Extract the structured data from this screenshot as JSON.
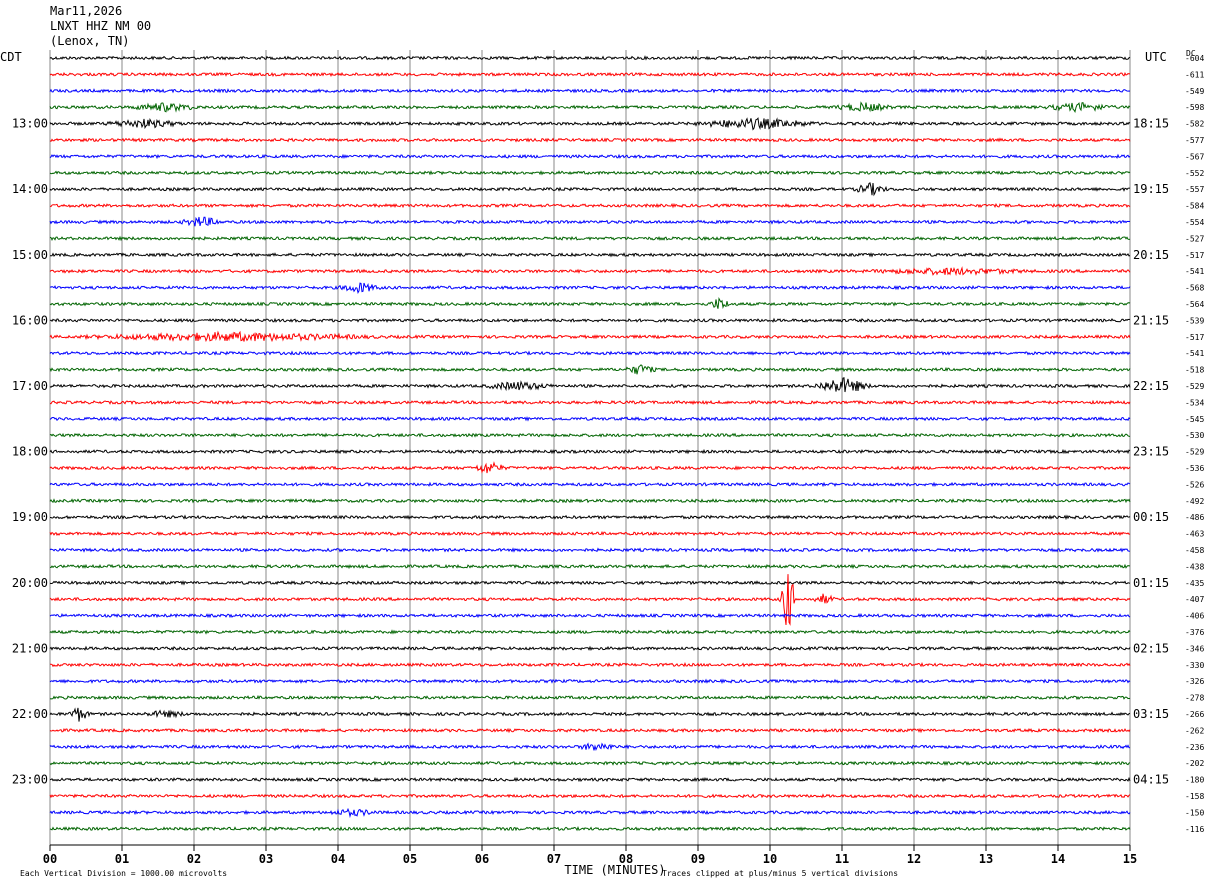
{
  "header": {
    "date": "Mar11,2026",
    "station": "LNXT HHZ NM 00",
    "location": "(Lenox, TN)"
  },
  "left_tz": "CDT",
  "right_tz": "UTC",
  "dc_label": "DC",
  "footer": {
    "scale_note": "Each Vertical Division = 1000.00 microvolts",
    "clip_note": "Traces clipped at plus/minus 5 vertical divisions"
  },
  "colors": {
    "trace_cycle": [
      "#000000",
      "#ff0000",
      "#0000ff",
      "#006400"
    ],
    "grid": "#888888",
    "text": "#000000"
  },
  "chart_data": {
    "type": "line",
    "xlabel": "TIME (MINUTES)",
    "xlim": [
      0,
      15
    ],
    "x_ticks": [
      "00",
      "01",
      "02",
      "03",
      "04",
      "05",
      "06",
      "07",
      "08",
      "09",
      "10",
      "11",
      "12",
      "13",
      "14",
      "15"
    ],
    "left_hour_labels": [
      "13:00",
      "14:00",
      "15:00",
      "16:00",
      "17:00",
      "18:00",
      "19:00",
      "20:00",
      "21:00",
      "22:00",
      "23:00"
    ],
    "right_hour_labels": [
      "18:15",
      "19:15",
      "20:15",
      "21:15",
      "22:15",
      "23:15",
      "00:15",
      "01:15",
      "02:15",
      "03:15",
      "04:15"
    ],
    "hour_label_first_row": 4,
    "hour_label_every_rows": 4,
    "dc_offsets": [
      -604,
      -611,
      -549,
      -598,
      -582,
      -577,
      -567,
      -552,
      -557,
      -584,
      -554,
      -527,
      -517,
      -541,
      -568,
      -564,
      -539,
      -517,
      -541,
      -518,
      -529,
      -534,
      -545,
      -530,
      -529,
      -536,
      -526,
      -492,
      -486,
      -463,
      -458,
      -438,
      -435,
      -407,
      -406,
      -376,
      -346,
      -330,
      -326,
      -278,
      -266,
      -262,
      -236,
      -202,
      -180,
      -158,
      -150,
      -116
    ],
    "rows": 48,
    "minutes_per_row": 15
  }
}
